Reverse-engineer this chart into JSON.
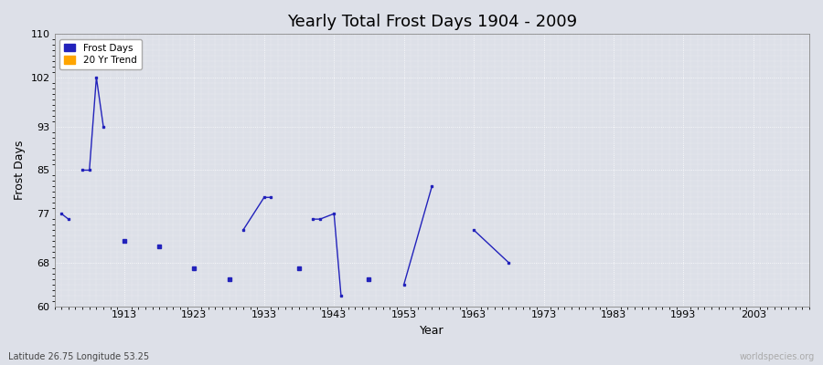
{
  "title": "Yearly Total Frost Days 1904 - 2009",
  "xlabel": "Year",
  "ylabel": "Frost Days",
  "xlim": [
    1903,
    2011
  ],
  "ylim": [
    60,
    110
  ],
  "yticks": [
    60,
    68,
    77,
    85,
    93,
    102,
    110
  ],
  "xticks": [
    1913,
    1923,
    1933,
    1943,
    1953,
    1963,
    1973,
    1983,
    1993,
    2003
  ],
  "bg_color": "#dde0e8",
  "frost_color": "#2222bb",
  "trend_color": "#ffa500",
  "subtitle": "Latitude 26.75 Longitude 53.25",
  "watermark": "worldspecies.org",
  "segments": [
    {
      "x": [
        1904,
        1905
      ],
      "y": [
        77,
        76
      ]
    },
    {
      "x": [
        1907,
        1908,
        1909,
        1910
      ],
      "y": [
        85,
        85,
        102,
        93
      ]
    },
    {
      "x": [
        1913
      ],
      "y": [
        72
      ]
    },
    {
      "x": [
        1918
      ],
      "y": [
        71
      ]
    },
    {
      "x": [
        1923
      ],
      "y": [
        67
      ]
    },
    {
      "x": [
        1928
      ],
      "y": [
        65
      ]
    },
    {
      "x": [
        1930,
        1933,
        1934
      ],
      "y": [
        74,
        80,
        80
      ]
    },
    {
      "x": [
        1938
      ],
      "y": [
        67
      ]
    },
    {
      "x": [
        1940,
        1941,
        1943,
        1944
      ],
      "y": [
        76,
        76,
        77,
        62
      ]
    },
    {
      "x": [
        1948
      ],
      "y": [
        65
      ]
    },
    {
      "x": [
        1953,
        1957
      ],
      "y": [
        64,
        82
      ]
    },
    {
      "x": [
        1963,
        1968
      ],
      "y": [
        74,
        68
      ]
    }
  ]
}
